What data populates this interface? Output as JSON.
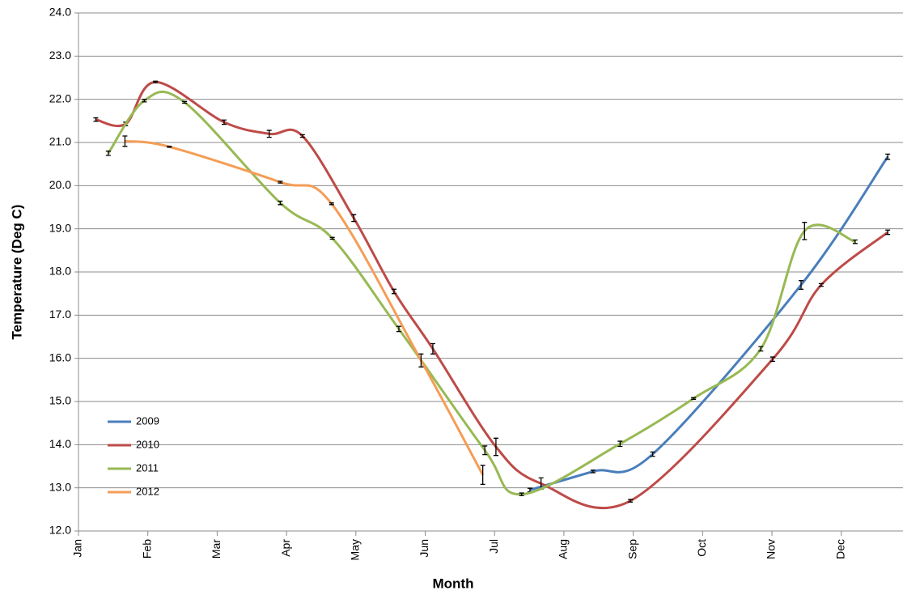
{
  "chart_data": {
    "type": "line",
    "x_label": "Month",
    "y_label": "Temperature (Deg C)",
    "xlim": [
      0,
      11.89
    ],
    "ylim": [
      12,
      24
    ],
    "xticks": [
      {
        "value": 0,
        "label": "Jan"
      },
      {
        "value": 1,
        "label": "Feb"
      },
      {
        "value": 2,
        "label": "Mar"
      },
      {
        "value": 3,
        "label": "Apr"
      },
      {
        "value": 4,
        "label": "May"
      },
      {
        "value": 5,
        "label": "Jun"
      },
      {
        "value": 6,
        "label": "Jul"
      },
      {
        "value": 7,
        "label": "Aug"
      },
      {
        "value": 8,
        "label": "Sep"
      },
      {
        "value": 9,
        "label": "Oct"
      },
      {
        "value": 10,
        "label": "Nov"
      },
      {
        "value": 11,
        "label": "Dec"
      }
    ],
    "yticks": [
      {
        "value": 12,
        "label": "12.0"
      },
      {
        "value": 13,
        "label": "13.0"
      },
      {
        "value": 14,
        "label": "14.0"
      },
      {
        "value": 15,
        "label": "15.0"
      },
      {
        "value": 16,
        "label": "16.0"
      },
      {
        "value": 17,
        "label": "17.0"
      },
      {
        "value": 18,
        "label": "18.0"
      },
      {
        "value": 19,
        "label": "19.0"
      },
      {
        "value": 20,
        "label": "20.0"
      },
      {
        "value": 21,
        "label": "21.0"
      },
      {
        "value": 22,
        "label": "22.0"
      },
      {
        "value": 23,
        "label": "23.0"
      },
      {
        "value": 24,
        "label": "24.0"
      }
    ],
    "grid": true,
    "legend": "lower left",
    "series": [
      {
        "name": "2009",
        "color": "#4a7ebb",
        "x": [
          6.51,
          7.42,
          8.28,
          10.42,
          11.67
        ],
        "values": [
          12.95,
          13.38,
          13.78,
          17.7,
          20.67
        ],
        "errors": [
          0.04,
          0.03,
          0.05,
          0.1,
          0.06
        ]
      },
      {
        "name": "2010",
        "color": "#be4b48",
        "x": [
          0.25,
          0.68,
          1.11,
          2.1,
          2.75,
          3.23,
          3.97,
          4.55,
          5.11,
          6.02,
          6.67,
          7.96,
          10.01,
          10.71,
          11.67
        ],
        "values": [
          21.53,
          21.43,
          22.4,
          21.47,
          21.2,
          21.15,
          19.25,
          17.55,
          16.22,
          13.95,
          13.1,
          12.7,
          15.98,
          17.7,
          18.92
        ],
        "errors": [
          0.04,
          0.04,
          0.02,
          0.05,
          0.08,
          0.03,
          0.08,
          0.05,
          0.12,
          0.2,
          0.13,
          0.03,
          0.05,
          0.03,
          0.05
        ]
      },
      {
        "name": "2011",
        "color": "#98b954",
        "x": [
          0.43,
          0.95,
          1.53,
          2.91,
          3.66,
          4.62,
          5.86,
          6.39,
          7.81,
          8.87,
          9.84,
          10.47,
          11.2
        ],
        "values": [
          20.75,
          21.97,
          21.93,
          19.6,
          18.78,
          16.68,
          13.87,
          12.85,
          14.02,
          15.07,
          16.22,
          18.95,
          18.7
        ],
        "errors": [
          0.05,
          0.03,
          0.02,
          0.04,
          0.02,
          0.06,
          0.1,
          0.03,
          0.06,
          0.02,
          0.05,
          0.2,
          0.04
        ]
      },
      {
        "name": "2012",
        "color": "#f59d56",
        "x": [
          0.67,
          1.31,
          2.91,
          3.65,
          4.94,
          5.83
        ],
        "values": [
          21.03,
          20.9,
          20.08,
          19.58,
          15.95,
          13.3
        ],
        "errors": [
          0.12,
          0.01,
          0.02,
          0.02,
          0.15,
          0.22
        ]
      }
    ]
  }
}
